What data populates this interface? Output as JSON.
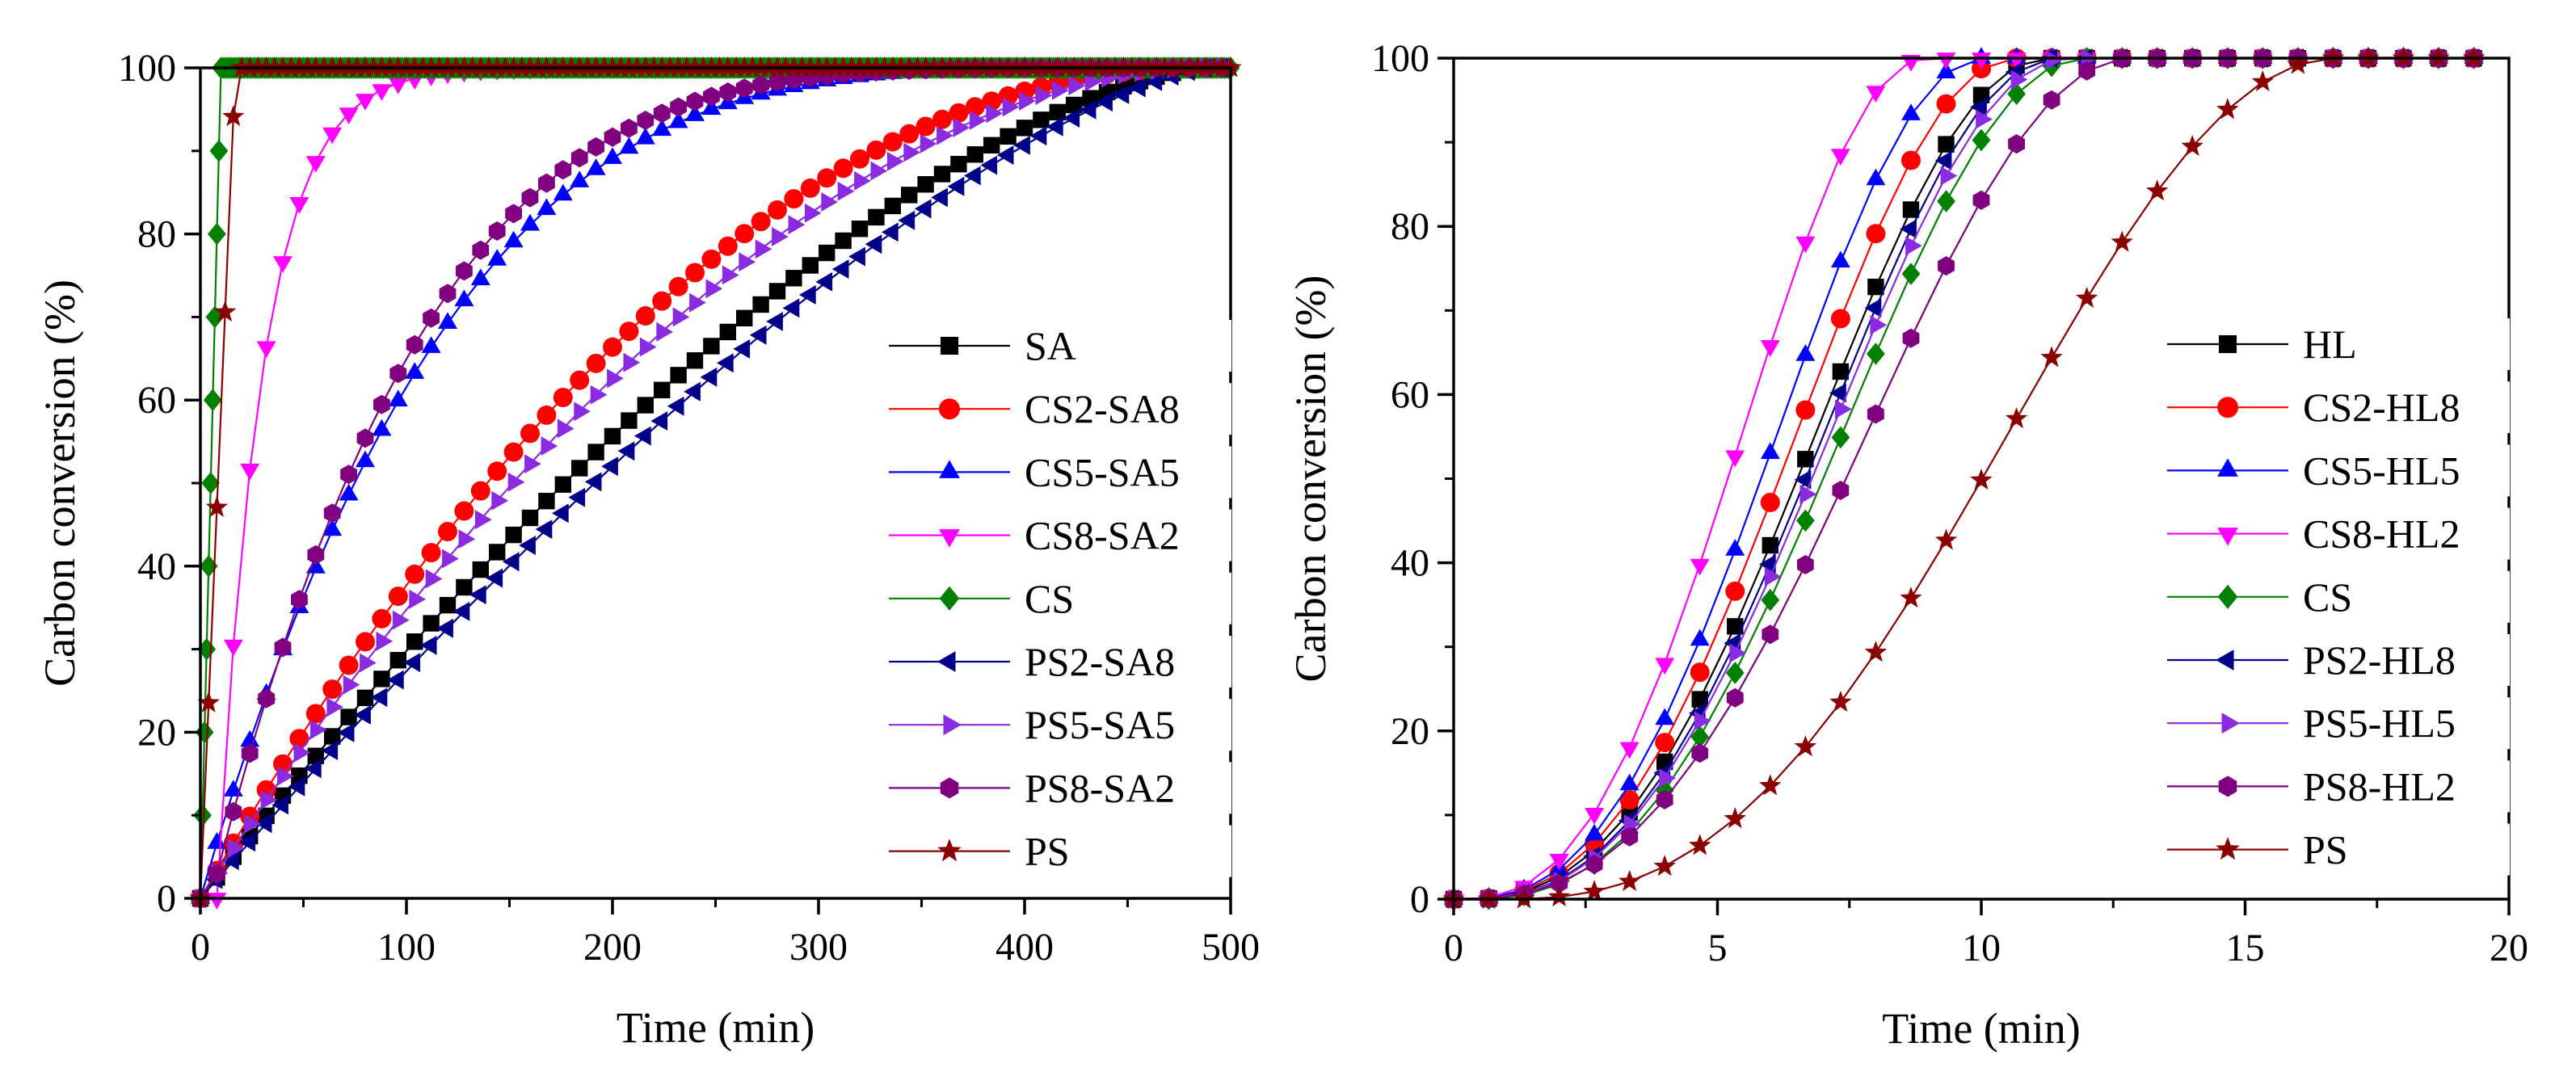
{
  "chart_data": [
    {
      "type": "line",
      "title": "",
      "xlabel": "Time (min)",
      "ylabel": "Carbon conversion (%)",
      "xlim": [
        0,
        500
      ],
      "ylim": [
        0,
        100
      ],
      "xticks": [
        0,
        100,
        200,
        300,
        400,
        500
      ],
      "yticks": [
        0,
        20,
        40,
        60,
        80,
        100
      ],
      "grid": false,
      "legend": "right",
      "series": [
        {
          "name": "SA",
          "marker": "square",
          "color": "#000000",
          "kind": "sa",
          "end": 490,
          "p": 1.55,
          "t0": 0,
          "x0": 0,
          "step": 8
        },
        {
          "name": "CS2-SA8",
          "marker": "circle",
          "color": "#ff0000",
          "kind": "pow",
          "end": 485,
          "p": 2.05,
          "t0": 0,
          "x0": 0,
          "step": 8
        },
        {
          "name": "CS5-SA5",
          "marker": "triangle-up",
          "color": "#0000ff",
          "kind": "pow",
          "end": 470,
          "p": 4.0,
          "t0": 0,
          "x0": 0,
          "step": 8
        },
        {
          "name": "CS8-SA2",
          "marker": "triangle-down",
          "color": "#ff00ff",
          "kind": "exp",
          "end": 260,
          "tau": 22,
          "t0": 8,
          "x0": 0,
          "step": 8
        },
        {
          "name": "CS",
          "marker": "diamond",
          "color": "#008000",
          "kind": "lin",
          "end": 490,
          "te": 10,
          "t0": 0,
          "x0": 0,
          "step": 1
        },
        {
          "name": "PS2-SA8",
          "marker": "triangle-left",
          "color": "#00008b",
          "kind": "pow",
          "end": 490,
          "p": 1.4,
          "t0": 0,
          "x0": 0,
          "step": 8
        },
        {
          "name": "PS5-SA5",
          "marker": "triangle-right",
          "color": "#8a2be2",
          "kind": "pow",
          "end": 485,
          "p": 1.85,
          "t0": 0,
          "x0": 0,
          "step": 8
        },
        {
          "name": "PS8-SA2",
          "marker": "hexagon",
          "color": "#800080",
          "kind": "pow",
          "end": 480,
          "p": 4.7,
          "t0": 5,
          "x0": 0,
          "step": 8
        },
        {
          "name": "PS",
          "marker": "star",
          "color": "#8b0000",
          "kind": "lin",
          "end": 245,
          "te": 17,
          "t0": 0,
          "x0": 0,
          "step": 4
        }
      ]
    },
    {
      "type": "line",
      "title": "",
      "xlabel": "Time (min)",
      "ylabel": "Carbon conversion (%)",
      "xlim": [
        0,
        20
      ],
      "ylim": [
        0,
        100
      ],
      "xticks": [
        0,
        5,
        10,
        15,
        20
      ],
      "yticks": [
        0,
        20,
        40,
        60,
        80,
        100
      ],
      "grid": false,
      "legend": "right",
      "series": [
        {
          "name": "HL",
          "marker": "square",
          "color": "#000000",
          "kind": "sig",
          "start": 0.2,
          "end": 11.2,
          "step": 0.6667
        },
        {
          "name": "CS2-HL8",
          "marker": "circle",
          "color": "#ff0000",
          "kind": "sig",
          "start": 0.2,
          "end": 10.6,
          "step": 0.6667
        },
        {
          "name": "CS5-HL5",
          "marker": "triangle-up",
          "color": "#0000ff",
          "kind": "sig",
          "start": 0.2,
          "end": 10.0,
          "step": 0.6667
        },
        {
          "name": "CS8-HL2",
          "marker": "triangle-down",
          "color": "#ff00ff",
          "kind": "sig",
          "start": 0.2,
          "end": 8.9,
          "step": 0.6667
        },
        {
          "name": "CS",
          "marker": "diamond",
          "color": "#008000",
          "kind": "sig",
          "start": 0.4,
          "end": 11.9,
          "step": 0.6667
        },
        {
          "name": "PS2-HL8",
          "marker": "triangle-left",
          "color": "#00008b",
          "kind": "sig",
          "start": 0.3,
          "end": 11.4,
          "step": 0.6667
        },
        {
          "name": "PS5-HL5",
          "marker": "triangle-right",
          "color": "#8a2be2",
          "kind": "sig",
          "start": 0.3,
          "end": 11.6,
          "step": 0.6667
        },
        {
          "name": "PS8-HL2",
          "marker": "hexagon",
          "color": "#800080",
          "kind": "sig",
          "start": 0.2,
          "end": 12.8,
          "step": 0.6667
        },
        {
          "name": "PS",
          "marker": "star",
          "color": "#8b0000",
          "kind": "sig",
          "start": 1.0,
          "end": 16.7,
          "step": 0.6667
        }
      ]
    }
  ]
}
